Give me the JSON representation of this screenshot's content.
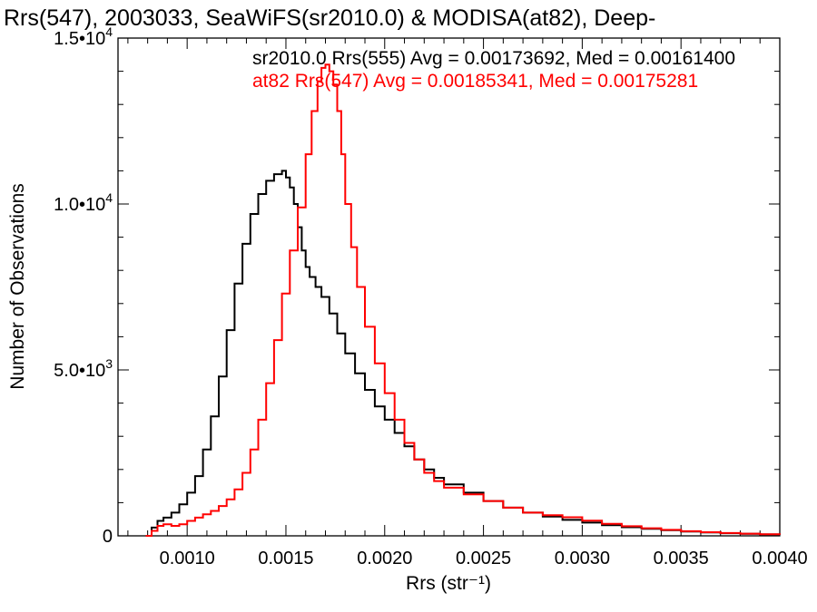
{
  "chart_data": {
    "type": "line",
    "title": "Rrs(547), 2003033, SeaWiFS(sr2010.0) & MODISA(at82), Deep-",
    "xlabel": "Rrs (str⁻¹)",
    "ylabel": "Number of Observations",
    "xlim": [
      0.00065,
      0.004
    ],
    "ylim": [
      0,
      15000
    ],
    "x_ticks": [
      {
        "value": 0.001,
        "label": "0.0010"
      },
      {
        "value": 0.0015,
        "label": "0.0015"
      },
      {
        "value": 0.002,
        "label": "0.0020"
      },
      {
        "value": 0.0025,
        "label": "0.0025"
      },
      {
        "value": 0.003,
        "label": "0.0030"
      },
      {
        "value": 0.0035,
        "label": "0.0035"
      },
      {
        "value": 0.004,
        "label": "0.0040"
      }
    ],
    "y_ticks": [
      {
        "value": 0,
        "mantissa": "0",
        "exponent": ""
      },
      {
        "value": 5000,
        "mantissa": "5.0•10",
        "exponent": "3"
      },
      {
        "value": 10000,
        "mantissa": "1.0•10",
        "exponent": "4"
      },
      {
        "value": 15000,
        "mantissa": "1.5•10",
        "exponent": "4"
      }
    ],
    "grid": false,
    "annotations": [
      {
        "text": "sr2010.0 Rrs(555) Avg = 0.00173692, Med = 0.00161400",
        "color": "#000000"
      },
      {
        "text": "at82 Rrs(547) Avg = 0.00185341, Med = 0.00175281",
        "color": "#ff0000"
      }
    ],
    "series": [
      {
        "color": "#000000",
        "x": [
          0.00079,
          0.00082,
          0.00085,
          0.00088,
          0.00092,
          0.00096,
          0.001,
          0.00104,
          0.00108,
          0.00112,
          0.00116,
          0.0012,
          0.00124,
          0.00128,
          0.00132,
          0.00136,
          0.0014,
          0.00144,
          0.00148,
          0.0015,
          0.00152,
          0.00154,
          0.00156,
          0.00158,
          0.0016,
          0.00162,
          0.00165,
          0.00168,
          0.00172,
          0.00176,
          0.0018,
          0.00185,
          0.0019,
          0.00195,
          0.002,
          0.00205,
          0.0021,
          0.00215,
          0.0022,
          0.00225,
          0.0023,
          0.0024,
          0.0025,
          0.0026,
          0.0027,
          0.0028,
          0.0029,
          0.003,
          0.0031,
          0.0032,
          0.0033,
          0.0034,
          0.0035,
          0.0036,
          0.0037,
          0.0038,
          0.0039,
          0.004
        ],
        "values": [
          0,
          250,
          450,
          550,
          700,
          950,
          1300,
          1800,
          2600,
          3600,
          4800,
          6200,
          7600,
          8800,
          9700,
          10300,
          10700,
          10900,
          11000,
          10800,
          10500,
          10000,
          9300,
          8600,
          8100,
          7800,
          7500,
          7200,
          6700,
          6100,
          5500,
          4900,
          4400,
          3900,
          3500,
          3100,
          2700,
          2300,
          2000,
          1750,
          1550,
          1300,
          1050,
          850,
          700,
          580,
          480,
          400,
          320,
          260,
          210,
          170,
          130,
          100,
          80,
          60,
          45,
          30
        ]
      },
      {
        "color": "#ff0000",
        "x": [
          0.00079,
          0.00082,
          0.00085,
          0.00088,
          0.00092,
          0.00096,
          0.001,
          0.00104,
          0.00108,
          0.00112,
          0.00116,
          0.0012,
          0.00124,
          0.00128,
          0.00132,
          0.00136,
          0.0014,
          0.00144,
          0.00148,
          0.00152,
          0.00156,
          0.0016,
          0.00163,
          0.00166,
          0.00168,
          0.0017,
          0.00172,
          0.00174,
          0.00176,
          0.00178,
          0.0018,
          0.00183,
          0.00186,
          0.0019,
          0.00195,
          0.002,
          0.00205,
          0.0021,
          0.00215,
          0.0022,
          0.00225,
          0.0023,
          0.0024,
          0.0025,
          0.0026,
          0.0027,
          0.0028,
          0.0029,
          0.003,
          0.0031,
          0.0032,
          0.0033,
          0.0034,
          0.0035,
          0.0036,
          0.0037,
          0.0038,
          0.0039,
          0.004
        ],
        "values": [
          0,
          150,
          300,
          350,
          300,
          350,
          450,
          550,
          650,
          750,
          900,
          1100,
          1400,
          1900,
          2600,
          3500,
          4600,
          5900,
          7300,
          8600,
          9900,
          11500,
          12800,
          13700,
          14100,
          14200,
          14000,
          13600,
          12800,
          11500,
          10000,
          8700,
          7500,
          6300,
          5200,
          4300,
          3500,
          2800,
          2300,
          1900,
          1650,
          1450,
          1250,
          1050,
          850,
          700,
          620,
          560,
          460,
          360,
          290,
          230,
          180,
          140,
          110,
          85,
          65,
          50,
          35
        ]
      }
    ]
  }
}
